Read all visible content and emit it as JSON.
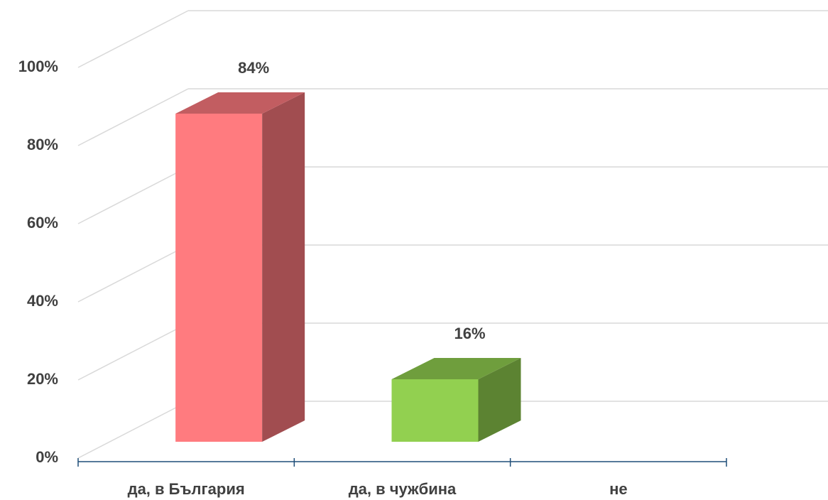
{
  "chart_data": {
    "type": "bar3d",
    "categories": [
      "да, в България",
      "да, в чужбина",
      "не"
    ],
    "values": [
      84,
      16,
      0
    ],
    "value_labels": [
      "84%",
      "16%",
      null
    ],
    "colors": [
      "#ff7b7f",
      "#92d050",
      null
    ],
    "ylim": [
      0,
      100
    ],
    "yticks": [
      {
        "value": 0,
        "label": "0%"
      },
      {
        "value": 20,
        "label": "20%"
      },
      {
        "value": 40,
        "label": "40%"
      },
      {
        "value": 60,
        "label": "60%"
      },
      {
        "value": 80,
        "label": "80%"
      },
      {
        "value": 100,
        "label": "100%"
      }
    ],
    "grid": true
  }
}
